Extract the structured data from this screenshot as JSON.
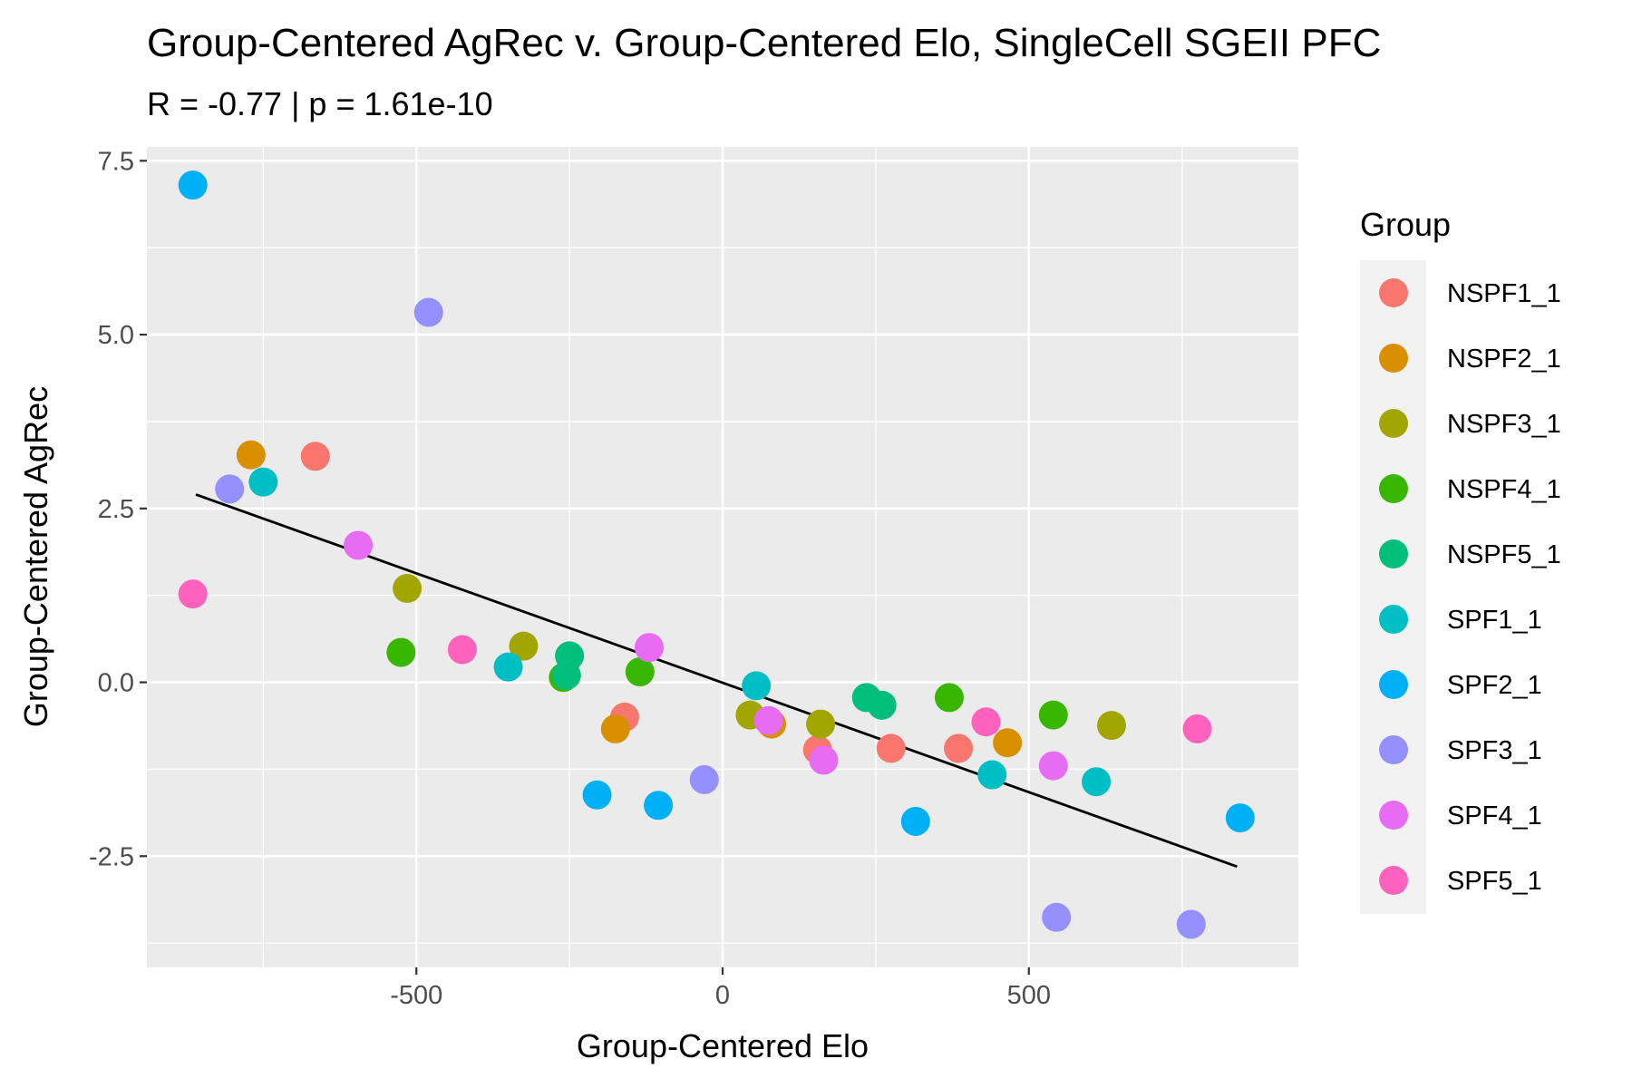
{
  "chart_data": {
    "type": "scatter",
    "title": "Group-Centered AgRec v. Group-Centered Elo, SingleCell SGEII PFC",
    "subtitle": "R = -0.77 | p = 1.61e-10",
    "xlabel": "Group-Centered Elo",
    "ylabel": "Group-Centered AgRec",
    "xlim": [
      -940,
      940
    ],
    "ylim": [
      -4.1,
      7.7
    ],
    "x_ticks": [
      -500,
      0,
      500
    ],
    "x_tick_labels": [
      "-500",
      "0",
      "500"
    ],
    "y_ticks": [
      -2.5,
      0.0,
      2.5,
      5.0,
      7.5
    ],
    "y_tick_labels": [
      "-2.5",
      "0.0",
      "2.5",
      "5.0",
      "7.5"
    ],
    "grid": true,
    "legend_position": "right",
    "legend_title": "Group",
    "fit_line": {
      "x": [
        -860,
        840
      ],
      "y": [
        2.7,
        -2.65
      ]
    },
    "series": [
      {
        "name": "NSPF1_1",
        "color": "#F8766D",
        "points": [
          [
            -665,
            3.25
          ],
          [
            -160,
            -0.5
          ],
          [
            155,
            -0.97
          ],
          [
            275,
            -0.95
          ],
          [
            385,
            -0.95
          ]
        ]
      },
      {
        "name": "NSPF2_1",
        "color": "#D89000",
        "points": [
          [
            -770,
            3.27
          ],
          [
            -175,
            -0.67
          ],
          [
            80,
            -0.6
          ],
          [
            465,
            -0.87
          ]
        ]
      },
      {
        "name": "NSPF3_1",
        "color": "#A3A500",
        "points": [
          [
            -515,
            1.35
          ],
          [
            -325,
            0.52
          ],
          [
            45,
            -0.47
          ],
          [
            160,
            -0.6
          ],
          [
            635,
            -0.62
          ]
        ]
      },
      {
        "name": "NSPF4_1",
        "color": "#39B600",
        "points": [
          [
            -525,
            0.43
          ],
          [
            -260,
            0.07
          ],
          [
            -135,
            0.15
          ],
          [
            370,
            -0.22
          ],
          [
            540,
            -0.47
          ]
        ]
      },
      {
        "name": "NSPF5_1",
        "color": "#00BF7D",
        "points": [
          [
            -255,
            0.1
          ],
          [
            -250,
            0.38
          ],
          [
            235,
            -0.22
          ],
          [
            260,
            -0.33
          ]
        ]
      },
      {
        "name": "SPF1_1",
        "color": "#00BFC4",
        "points": [
          [
            -750,
            2.88
          ],
          [
            -350,
            0.22
          ],
          [
            55,
            -0.05
          ],
          [
            440,
            -1.33
          ],
          [
            610,
            -1.43
          ]
        ]
      },
      {
        "name": "SPF2_1",
        "color": "#00B0F6",
        "points": [
          [
            -865,
            7.15
          ],
          [
            -205,
            -1.62
          ],
          [
            -105,
            -1.77
          ],
          [
            315,
            -2.0
          ],
          [
            845,
            -1.95
          ]
        ]
      },
      {
        "name": "SPF3_1",
        "color": "#9590FF",
        "points": [
          [
            -480,
            5.32
          ],
          [
            -805,
            2.78
          ],
          [
            -30,
            -1.4
          ],
          [
            545,
            -3.38
          ],
          [
            765,
            -3.48
          ]
        ]
      },
      {
        "name": "SPF4_1",
        "color": "#E76BF3",
        "points": [
          [
            -595,
            1.97
          ],
          [
            -120,
            0.5
          ],
          [
            75,
            -0.55
          ],
          [
            165,
            -1.12
          ],
          [
            540,
            -1.2
          ]
        ]
      },
      {
        "name": "SPF5_1",
        "color": "#FF62BC",
        "points": [
          [
            -865,
            1.27
          ],
          [
            -425,
            0.47
          ],
          [
            430,
            -0.57
          ],
          [
            775,
            -0.67
          ]
        ]
      }
    ]
  }
}
